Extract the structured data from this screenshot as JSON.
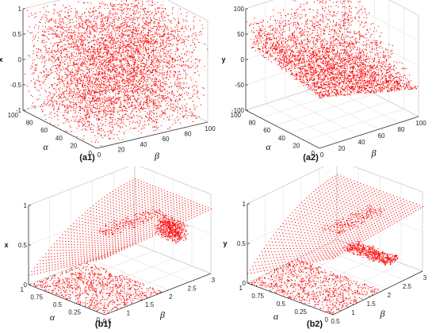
{
  "colors": {
    "points": "#ff0000",
    "axes": "#333333",
    "grid": "#d9d9d9"
  },
  "chart_data": [
    {
      "type": "scatter",
      "id": "a1",
      "label": "(a1)",
      "xlabel": "α",
      "ylabel": "β",
      "zlabel": "x",
      "xlim": [
        0,
        100
      ],
      "ylim": [
        0,
        100
      ],
      "zlim": [
        -1,
        1
      ],
      "xticks": [
        "0",
        "20",
        "40",
        "60",
        "80",
        "100"
      ],
      "yticks": [
        "0",
        "20",
        "40",
        "60",
        "80",
        "100"
      ],
      "zticks": [
        "-1",
        "-0.5",
        "0",
        "0.5",
        "1"
      ],
      "grid": true,
      "pattern": "uniform-cube"
    },
    {
      "type": "scatter",
      "id": "a2",
      "label": "(a2)",
      "xlabel": "α",
      "ylabel": "β",
      "zlabel": "y",
      "xlim": [
        0,
        100
      ],
      "ylim": [
        0,
        100
      ],
      "zlim": [
        -100,
        100
      ],
      "xticks": [
        "0",
        "20",
        "40",
        "60",
        "80",
        "100"
      ],
      "yticks": [
        "0",
        "20",
        "40",
        "60",
        "80",
        "100"
      ],
      "zticks": [
        "-100",
        "-50",
        "0",
        "50",
        "100"
      ],
      "grid": true,
      "pattern": "wedge"
    },
    {
      "type": "scatter",
      "id": "b1",
      "label": "(b1)",
      "xlabel": "α",
      "ylabel": "β",
      "zlabel": "x",
      "xlim": [
        0,
        1
      ],
      "ylim": [
        0,
        3
      ],
      "zlim": [
        0,
        1
      ],
      "xticks": [
        "0",
        "0.25",
        "0.5",
        "0.75",
        "1"
      ],
      "yticks": [
        "0.5",
        "1",
        "1.5",
        "2",
        "2.5",
        "3"
      ],
      "zticks": [
        "0",
        "0.5",
        "1"
      ],
      "grid": true,
      "pattern": "surface-x"
    },
    {
      "type": "scatter",
      "id": "b2",
      "label": "(b2)",
      "xlabel": "α",
      "ylabel": "β",
      "zlabel": "y",
      "xlim": [
        0,
        1
      ],
      "ylim": [
        0,
        3
      ],
      "zlim": [
        0,
        1
      ],
      "xticks": [
        "0",
        "0.25",
        "0.5",
        "0.75",
        "1"
      ],
      "yticks": [
        "0.5",
        "1",
        "1.5",
        "2",
        "2.5",
        "3"
      ],
      "zticks": [
        "0",
        "0.5",
        "1"
      ],
      "grid": true,
      "pattern": "surface-y"
    }
  ]
}
